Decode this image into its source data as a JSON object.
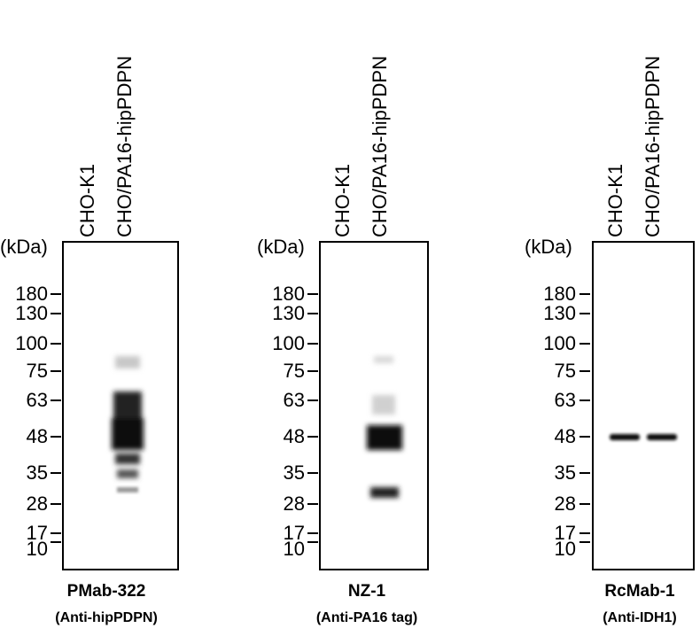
{
  "unit_label": "(kDa)",
  "lanes": [
    "CHO-K1",
    "CHO/PA16-hipPDPN"
  ],
  "markers": [
    "180",
    "130",
    "100",
    "75",
    "63",
    "48",
    "35",
    "28",
    "17",
    "10"
  ],
  "marker_values": [
    180,
    130,
    100,
    75,
    63,
    48,
    35,
    28,
    17,
    10
  ],
  "panels": [
    {
      "antibody": "PMab-322",
      "target": "(Anti-hipPDPN)"
    },
    {
      "antibody": "NZ-1",
      "target": "(Anti-PA16 tag)"
    },
    {
      "antibody": "RcMab-1",
      "target": "(Anti-IDH1)"
    }
  ]
}
